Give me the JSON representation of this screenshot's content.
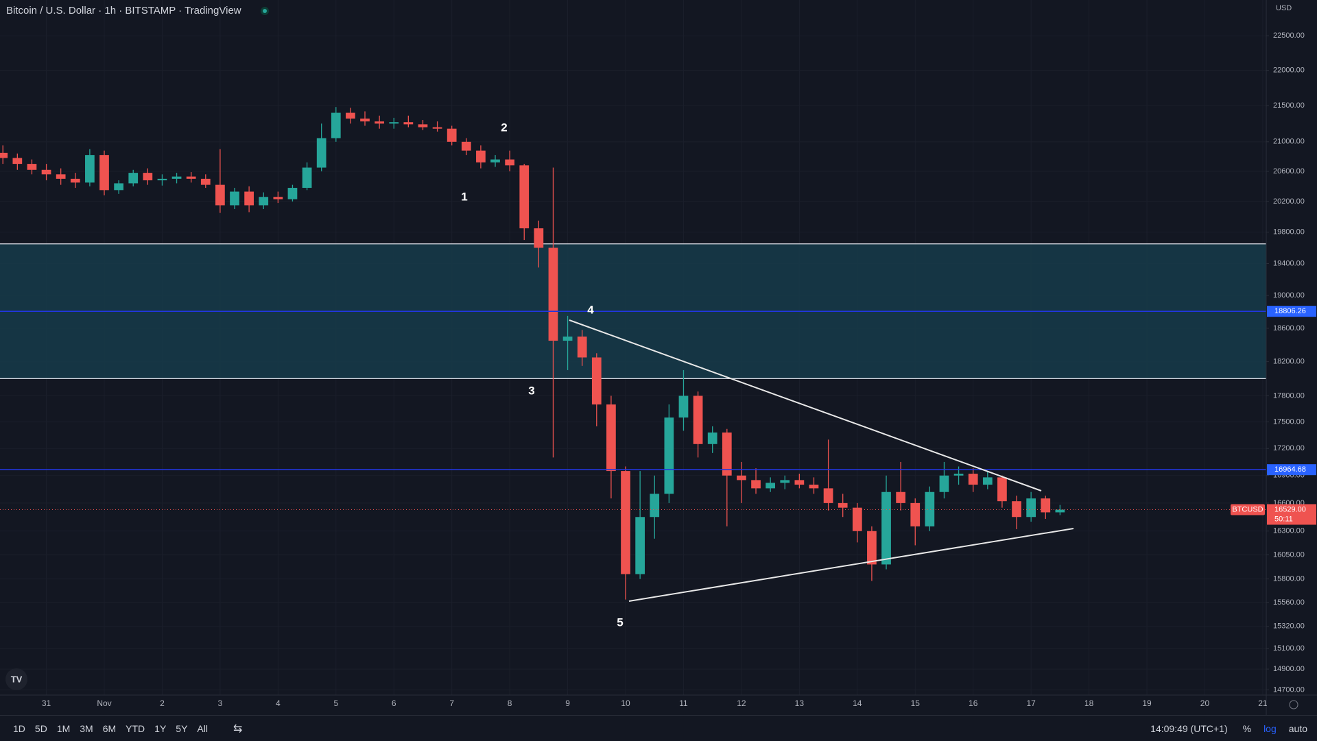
{
  "chart_data": {
    "type": "candlestick",
    "title": "Bitcoin / U.S. Dollar · 1h · BITSTAMP · TradingView",
    "currency": "USD",
    "x": [
      -0.75,
      -0.5,
      -0.25,
      0,
      0.25,
      0.5,
      0.75,
      1,
      1.25,
      1.5,
      1.75,
      2,
      2.25,
      2.5,
      2.75,
      3,
      3.25,
      3.5,
      3.75,
      4,
      4.25,
      4.5,
      4.75,
      5,
      5.25,
      5.5,
      5.75,
      6,
      6.25,
      6.5,
      6.75,
      7,
      7.25,
      7.5,
      7.75,
      8,
      8.25,
      8.5,
      8.75,
      9,
      9.25,
      9.5,
      9.75,
      10,
      10.25,
      10.5,
      10.75,
      11,
      11.25,
      11.5,
      11.75,
      12,
      12.25,
      12.5,
      12.75,
      13,
      13.25,
      13.5,
      13.75,
      14,
      14.25,
      14.5,
      14.75,
      15,
      15.25,
      15.5,
      15.75,
      16,
      16.25,
      16.5,
      16.75,
      17,
      17.25,
      17.5
    ],
    "open": [
      20850,
      20780,
      20700,
      20620,
      20560,
      20500,
      20450,
      20820,
      20350,
      20440,
      20580,
      20480,
      20500,
      20530,
      20500,
      20420,
      20150,
      20330,
      20150,
      20260,
      20230,
      20380,
      20650,
      21050,
      21400,
      21320,
      21280,
      21250,
      21270,
      21240,
      21200,
      21180,
      21000,
      20880,
      20720,
      20760,
      20680,
      19850,
      19600,
      18450,
      18500,
      18250,
      17700,
      16950,
      15850,
      16450,
      16700,
      17550,
      17800,
      17250,
      17380,
      16900,
      16850,
      16760,
      16820,
      16850,
      16800,
      16760,
      16600,
      16550,
      16300,
      15950,
      16720,
      16600,
      16350,
      16720,
      16900,
      16920,
      16800,
      16880,
      16620,
      16450,
      16650,
      16500
    ],
    "high": [
      20950,
      20840,
      20760,
      20700,
      20640,
      20580,
      20900,
      20880,
      20480,
      20620,
      20640,
      20560,
      20580,
      20590,
      20560,
      20900,
      20380,
      20400,
      20320,
      20330,
      20420,
      20720,
      21250,
      21480,
      21470,
      21420,
      21360,
      21330,
      21360,
      21300,
      21280,
      21220,
      21050,
      20950,
      20820,
      20880,
      20700,
      19950,
      20650,
      18750,
      18580,
      18300,
      17800,
      17000,
      16950,
      16900,
      17700,
      18100,
      17850,
      17450,
      17420,
      17050,
      16980,
      16880,
      16900,
      16920,
      16880,
      17300,
      16700,
      16600,
      16350,
      16900,
      17050,
      16650,
      16780,
      17050,
      17000,
      16980,
      16950,
      16900,
      16680,
      16720,
      16680,
      16580
    ],
    "low": [
      20700,
      20620,
      20560,
      20480,
      20420,
      20380,
      20400,
      20280,
      20300,
      20400,
      20420,
      20410,
      20440,
      20450,
      20380,
      20050,
      20100,
      20060,
      20100,
      20180,
      20200,
      20350,
      20600,
      21000,
      21250,
      21220,
      21180,
      21180,
      21200,
      21160,
      21140,
      20950,
      20820,
      20640,
      20660,
      20600,
      19700,
      19350,
      17100,
      18100,
      18150,
      17450,
      16650,
      15590,
      15800,
      16220,
      16600,
      17400,
      17100,
      17150,
      16350,
      16600,
      16700,
      16720,
      16750,
      16760,
      16700,
      16520,
      16450,
      16180,
      15780,
      15900,
      16520,
      16150,
      16300,
      16650,
      16800,
      16720,
      16750,
      16550,
      16320,
      16400,
      16430,
      16470
    ],
    "close": [
      20780,
      20700,
      20620,
      20560,
      20500,
      20450,
      20820,
      20350,
      20440,
      20580,
      20480,
      20500,
      20530,
      20500,
      20420,
      20150,
      20330,
      20150,
      20260,
      20230,
      20380,
      20650,
      21050,
      21400,
      21320,
      21280,
      21250,
      21270,
      21240,
      21200,
      21180,
      21000,
      20880,
      20720,
      20760,
      20680,
      19850,
      19600,
      18450,
      18500,
      18250,
      17700,
      16950,
      15850,
      16450,
      16700,
      17550,
      17800,
      17250,
      17380,
      16900,
      16850,
      16760,
      16820,
      16850,
      16800,
      16760,
      16600,
      16550,
      16300,
      15950,
      16720,
      16600,
      16350,
      16720,
      16900,
      16920,
      16800,
      16880,
      16620,
      16450,
      16650,
      16500,
      16529
    ],
    "up_color": "#26a69a",
    "down_color": "#ef5350",
    "xlim": [
      -0.8,
      21.06
    ],
    "xticks": [
      {
        "value": 0,
        "label": "31"
      },
      {
        "value": 1,
        "label": "Nov"
      },
      2,
      3,
      4,
      5,
      6,
      7,
      8,
      9,
      10,
      11,
      12,
      13,
      14,
      15,
      16,
      17,
      18,
      19,
      20,
      21
    ],
    "ylim": [
      14650,
      23030
    ],
    "log": true,
    "grid": true,
    "yticks": [
      {
        "value": 22500,
        "label": "22500.00"
      },
      {
        "value": 22000,
        "label": "22000.00"
      },
      {
        "value": 21500,
        "label": "21500.00"
      },
      {
        "value": 21000,
        "label": "21000.00"
      },
      {
        "value": 20600,
        "label": "20600.00"
      },
      {
        "value": 20200,
        "label": "20200.00"
      },
      {
        "value": 19800,
        "label": "19800.00"
      },
      {
        "value": 19400,
        "label": "19400.00"
      },
      {
        "value": 19000,
        "label": "19000.00"
      },
      {
        "value": 18600,
        "label": "18600.00"
      },
      {
        "value": 18200,
        "label": "18200.00"
      },
      {
        "value": 17800,
        "label": "17800.00"
      },
      {
        "value": 17500,
        "label": "17500.00"
      },
      {
        "value": 17200,
        "label": "17200.00"
      },
      {
        "value": 16900,
        "label": "16900.00"
      },
      {
        "value": 16600,
        "label": "16600.00"
      },
      {
        "value": 16300,
        "label": "16300.00"
      },
      {
        "value": 16050,
        "label": "16050.00"
      },
      {
        "value": 15800,
        "label": "15800.00"
      },
      {
        "value": 15560,
        "label": "15560.00"
      },
      {
        "value": 15320,
        "label": "15320.00"
      },
      {
        "value": 15100,
        "label": "15100.00"
      },
      {
        "value": 14900,
        "label": "14900.00"
      },
      {
        "value": 14700,
        "label": "14700.00"
      }
    ],
    "zone": [
      18000,
      19650
    ],
    "levels": [
      {
        "value": 18806.26,
        "color": "#2236e0"
      },
      {
        "value": 16964.68,
        "color": "#2236e0"
      }
    ],
    "current_price": {
      "value": 16529,
      "label": "16529.00",
      "symbol": "BTCUSD",
      "countdown": "50:11"
    },
    "annotations": [
      "1",
      "2",
      "3",
      "4",
      "5"
    ]
  },
  "toolbar": {
    "ranges": [
      "1D",
      "5D",
      "1M",
      "3M",
      "6M",
      "YTD",
      "1Y",
      "5Y",
      "All"
    ],
    "time": "14:09:49 (UTC+1)",
    "options": [
      "%",
      "log",
      "auto"
    ]
  }
}
